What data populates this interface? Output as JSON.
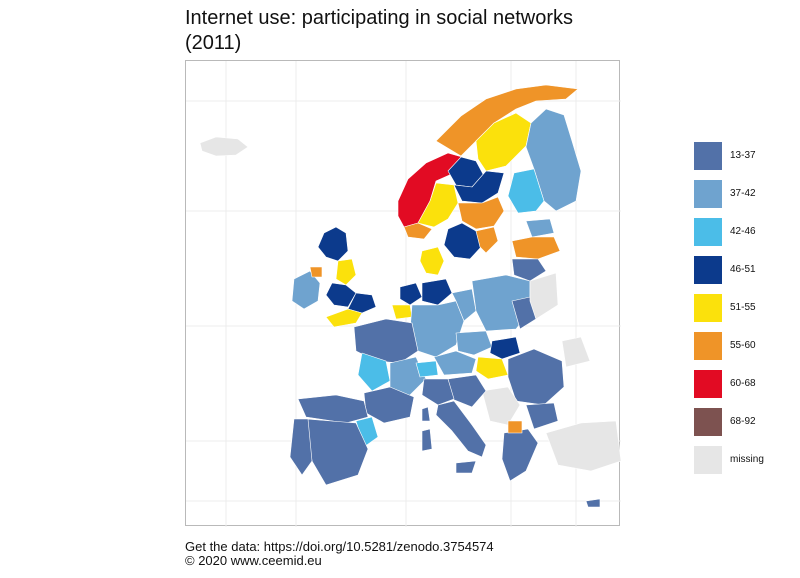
{
  "title_line1": "Internet use: participating in social networks",
  "title_line2": "(2011)",
  "legend": [
    {
      "label": "13-37",
      "color": "#5271a8"
    },
    {
      "label": "37-42",
      "color": "#6fa3cf"
    },
    {
      "label": "42-46",
      "color": "#4bbde8"
    },
    {
      "label": "46-51",
      "color": "#0c3a8c"
    },
    {
      "label": "51-55",
      "color": "#fbe10c"
    },
    {
      "label": "55-60",
      "color": "#ef9428"
    },
    {
      "label": "60-68",
      "color": "#e20b23"
    },
    {
      "label": "68-92",
      "color": "#7d5250"
    },
    {
      "label": "missing",
      "color": "#e6e6e6"
    }
  ],
  "footer_line1": "Get the data: https://doi.org/10.5281/zenodo.3754574",
  "footer_line2": "© 2020 www.ceemid.eu"
}
